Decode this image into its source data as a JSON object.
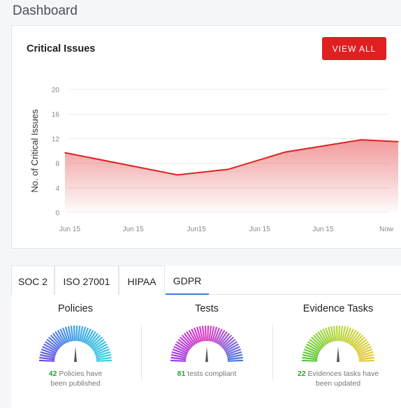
{
  "header": {
    "title": "Dashboard"
  },
  "card": {
    "title": "Critical Issues",
    "view_all_label": "VIEW ALL"
  },
  "chart_data": {
    "type": "area",
    "title": "Critical Issues",
    "xlabel": "",
    "ylabel": "No. of Critical Issues",
    "categories": [
      "Jun 15",
      "Jun 15",
      "Jun15",
      "Jun 15",
      "Jun 15",
      "Now"
    ],
    "y_ticks": [
      0,
      4,
      8,
      12,
      16,
      20
    ],
    "ylim": [
      0,
      20
    ],
    "grid": true,
    "color": "#e02020",
    "series": [
      {
        "x": [
          0,
          1.7,
          2.5,
          3.4,
          4.6,
          5.2
        ],
        "values": [
          9.7,
          6.1,
          7.0,
          9.8,
          11.8,
          11.5
        ]
      }
    ]
  },
  "tabs": [
    {
      "label": "SOC 2",
      "active": false
    },
    {
      "label": "ISO 27001",
      "active": false
    },
    {
      "label": "HIPAA",
      "active": false
    },
    {
      "label": "GDPR",
      "active": true
    }
  ],
  "metrics": [
    {
      "title": "Policies",
      "count": "42",
      "desc1": "Policies have",
      "desc2": "been published",
      "colors": [
        "#6a4ce0",
        "#3aa4e8",
        "#38d0e0"
      ]
    },
    {
      "title": "Tests",
      "count": "81",
      "desc1": "tests compliant",
      "desc2": "",
      "colors": [
        "#a03ce6",
        "#e03cc0",
        "#4a78e8"
      ]
    },
    {
      "title": "Evidence Tasks",
      "count": "22",
      "desc1": "Evidences tasks have",
      "desc2": "been updated",
      "colors": [
        "#58c83a",
        "#b8d83a",
        "#e8c83a"
      ]
    }
  ]
}
